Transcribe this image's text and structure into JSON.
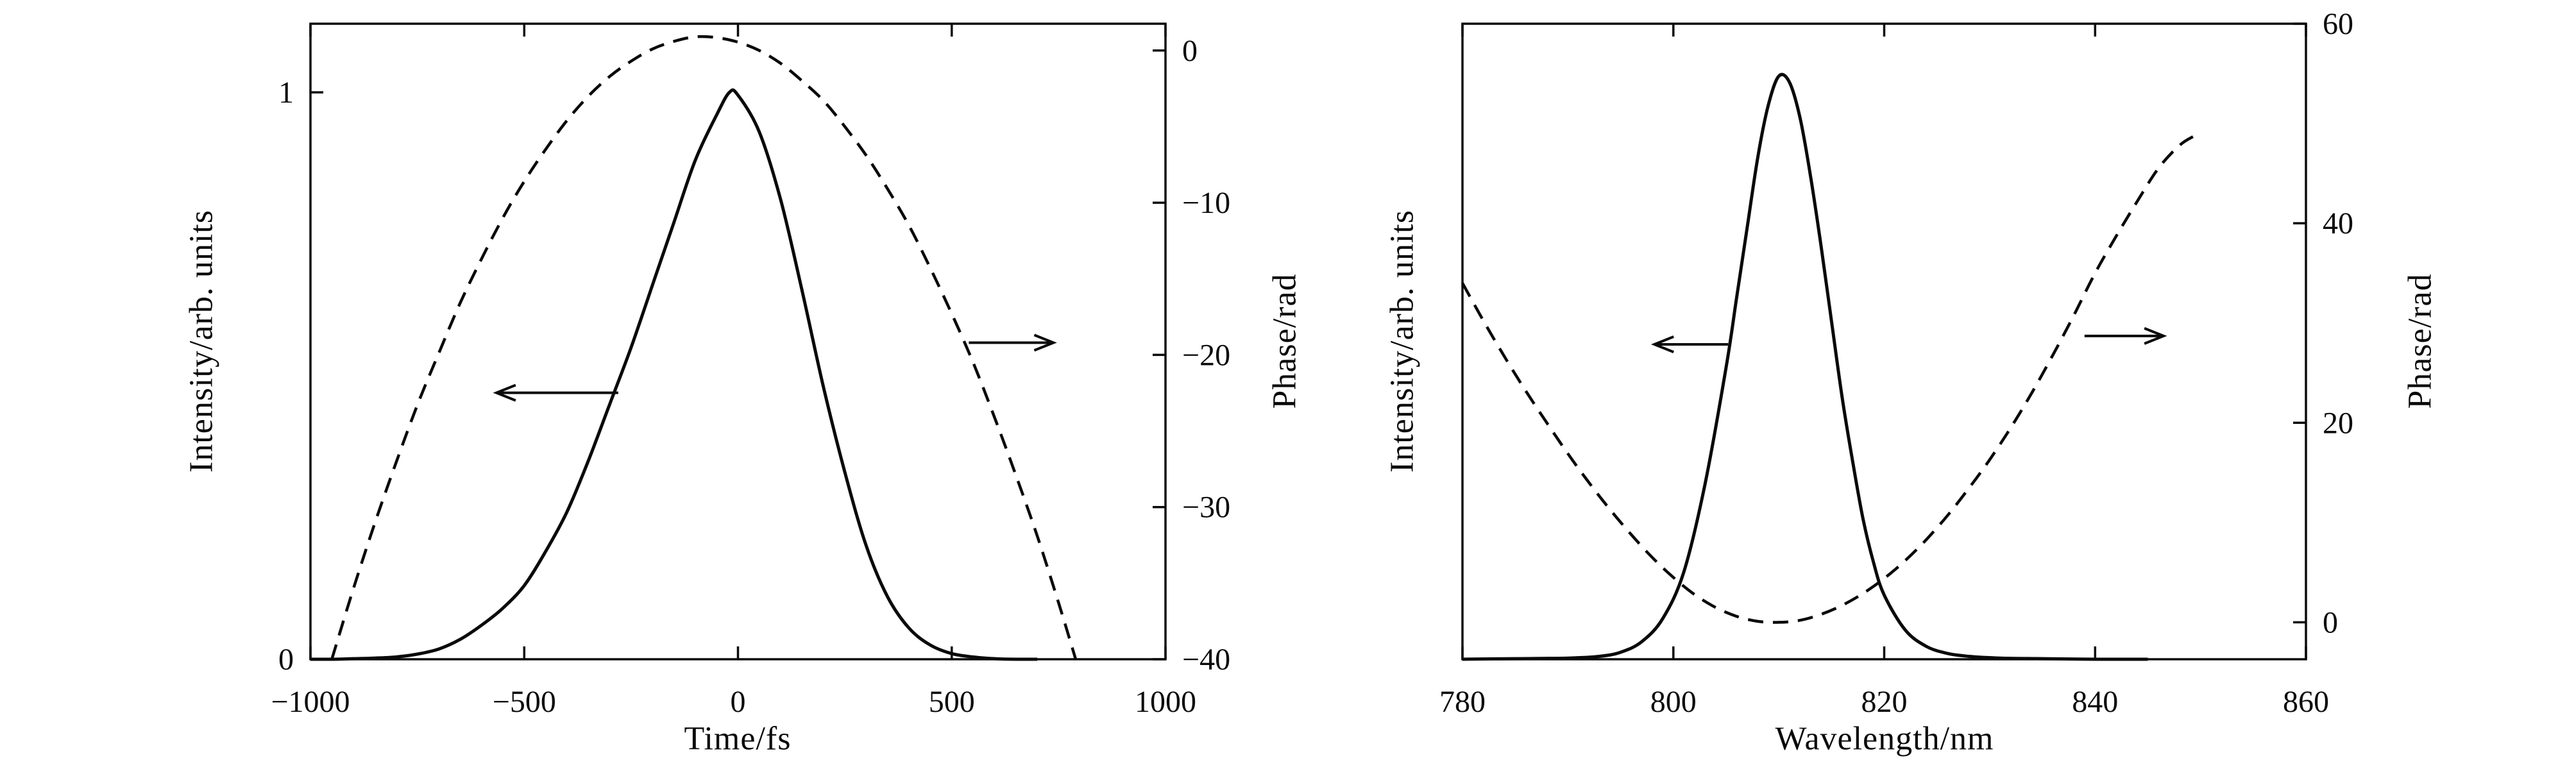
{
  "figure": {
    "background": "#ffffff",
    "line_color": "#0a0a0a"
  },
  "chart_data": [
    {
      "name": "temporal-profile",
      "type": "line",
      "title": "",
      "xlabel": "Time/fs",
      "ylabel_left": "Intensity/arb. units",
      "ylabel_right": "Phase/rad",
      "xlim": [
        -1000,
        1000
      ],
      "xticks": [
        -1000,
        -500,
        0,
        500,
        1000
      ],
      "xtick_labels": [
        "−1000",
        "−500",
        "0",
        "500",
        "1000"
      ],
      "ylim_left": [
        0,
        1.121
      ],
      "yticks_left": [
        0,
        1
      ],
      "ytick_labels_left": [
        "0",
        "1"
      ],
      "ylim_right": [
        -40,
        1.76
      ],
      "yticks_right": [
        0,
        -10,
        -20,
        -30,
        -40
      ],
      "ytick_labels_right": [
        "0",
        "−10",
        "−20",
        "−30",
        "−40"
      ],
      "grid": false,
      "legend": "none",
      "series": [
        {
          "name": "intensity",
          "axis": "left",
          "style": "solid",
          "x": [
            -1000,
            -950,
            -900,
            -850,
            -800,
            -750,
            -700,
            -650,
            -600,
            -550,
            -500,
            -450,
            -400,
            -350,
            -300,
            -250,
            -200,
            -150,
            -100,
            -50,
            -20,
            0,
            50,
            100,
            150,
            200,
            250,
            300,
            350,
            400,
            450,
            500,
            550,
            600,
            650,
            700
          ],
          "y": [
            0.0,
            0.0,
            0.001,
            0.002,
            0.004,
            0.009,
            0.018,
            0.035,
            0.06,
            0.09,
            0.13,
            0.19,
            0.26,
            0.35,
            0.45,
            0.55,
            0.66,
            0.77,
            0.88,
            0.96,
            1.0,
            0.995,
            0.93,
            0.81,
            0.65,
            0.48,
            0.33,
            0.2,
            0.11,
            0.055,
            0.025,
            0.01,
            0.004,
            0.001,
            0.0,
            0.0
          ]
        },
        {
          "name": "phase",
          "axis": "right",
          "style": "dashed",
          "x": [
            -950,
            -900,
            -850,
            -800,
            -750,
            -700,
            -650,
            -600,
            -550,
            -500,
            -450,
            -400,
            -350,
            -300,
            -250,
            -200,
            -150,
            -100,
            -50,
            0,
            50,
            100,
            150,
            200,
            250,
            300,
            350,
            400,
            450,
            500,
            550,
            600,
            650,
            700,
            750,
            790
          ],
          "y": [
            -40,
            -35.4,
            -31.1,
            -27.1,
            -23.3,
            -19.9,
            -16.6,
            -13.7,
            -11.0,
            -8.6,
            -6.5,
            -4.6,
            -3.0,
            -1.7,
            -0.7,
            0.1,
            0.6,
            0.9,
            0.85,
            0.55,
            0.0,
            -0.85,
            -2.0,
            -3.3,
            -5.0,
            -6.9,
            -9.1,
            -11.5,
            -14.3,
            -17.3,
            -20.5,
            -24.1,
            -27.9,
            -31.9,
            -36.3,
            -40
          ]
        }
      ],
      "arrows": [
        {
          "axis": "left",
          "x_tail": -280,
          "x_head": -565,
          "y": 0.47,
          "direction": "left"
        },
        {
          "axis": "right",
          "x_tail": 540,
          "x_head": 738,
          "y": -19.2,
          "direction": "right"
        }
      ]
    },
    {
      "name": "spectral-profile",
      "type": "line",
      "title": "",
      "xlabel": "Wavelength/nm",
      "ylabel_left": "Intensity/arb. units",
      "ylabel_right": "Phase/rad",
      "xlim": [
        780,
        860
      ],
      "xticks": [
        780,
        800,
        820,
        840,
        860
      ],
      "xtick_labels": [
        "780",
        "800",
        "820",
        "840",
        "860"
      ],
      "ylim_left": [
        0,
        1.09
      ],
      "yticks_left": [],
      "ytick_labels_left": [],
      "ylim_right": [
        -3.7,
        60
      ],
      "yticks_right": [
        0,
        20,
        40,
        60
      ],
      "ytick_labels_right": [
        "0",
        "20",
        "40",
        "60"
      ],
      "grid": false,
      "legend": "none",
      "series": [
        {
          "name": "intensity",
          "axis": "left",
          "style": "solid",
          "x": [
            780,
            785,
            790,
            793,
            795,
            797,
            799,
            801,
            803,
            805,
            806,
            807,
            808,
            809,
            810,
            811,
            812,
            813,
            814,
            815,
            816,
            817,
            818,
            819,
            820,
            822,
            824,
            826,
            828,
            831,
            835,
            840,
            845
          ],
          "y": [
            0.0,
            0.001,
            0.002,
            0.005,
            0.012,
            0.03,
            0.07,
            0.15,
            0.3,
            0.5,
            0.62,
            0.74,
            0.86,
            0.95,
            1.0,
            0.99,
            0.93,
            0.83,
            0.71,
            0.58,
            0.45,
            0.34,
            0.24,
            0.165,
            0.11,
            0.05,
            0.022,
            0.01,
            0.005,
            0.002,
            0.001,
            0.0,
            0.0
          ]
        },
        {
          "name": "phase",
          "axis": "right",
          "style": "dashed",
          "x": [
            780,
            782,
            784,
            786,
            788,
            790,
            792,
            794,
            796,
            798,
            800,
            802,
            804,
            806,
            808,
            810,
            812,
            814,
            816,
            818,
            820,
            822,
            824,
            826,
            828,
            830,
            832,
            834,
            836,
            838,
            840,
            842,
            844,
            846,
            848,
            849.5
          ],
          "y": [
            34,
            30.2,
            26.6,
            23.2,
            20.0,
            16.9,
            14.0,
            11.3,
            8.8,
            6.5,
            4.5,
            2.8,
            1.5,
            0.6,
            0.1,
            0.0,
            0.2,
            0.8,
            1.7,
            2.9,
            4.4,
            6.2,
            8.3,
            10.7,
            13.4,
            16.3,
            19.5,
            23.0,
            26.8,
            30.8,
            35.0,
            38.7,
            42.2,
            45.5,
            47.8,
            48.8
          ]
        }
      ],
      "arrows": [
        {
          "axis": "left",
          "x_tail": 805.2,
          "x_head": 798.2,
          "y": 0.54,
          "direction": "left"
        },
        {
          "axis": "right",
          "x_tail": 839,
          "x_head": 846.5,
          "y": 28.7,
          "direction": "right"
        }
      ]
    }
  ]
}
